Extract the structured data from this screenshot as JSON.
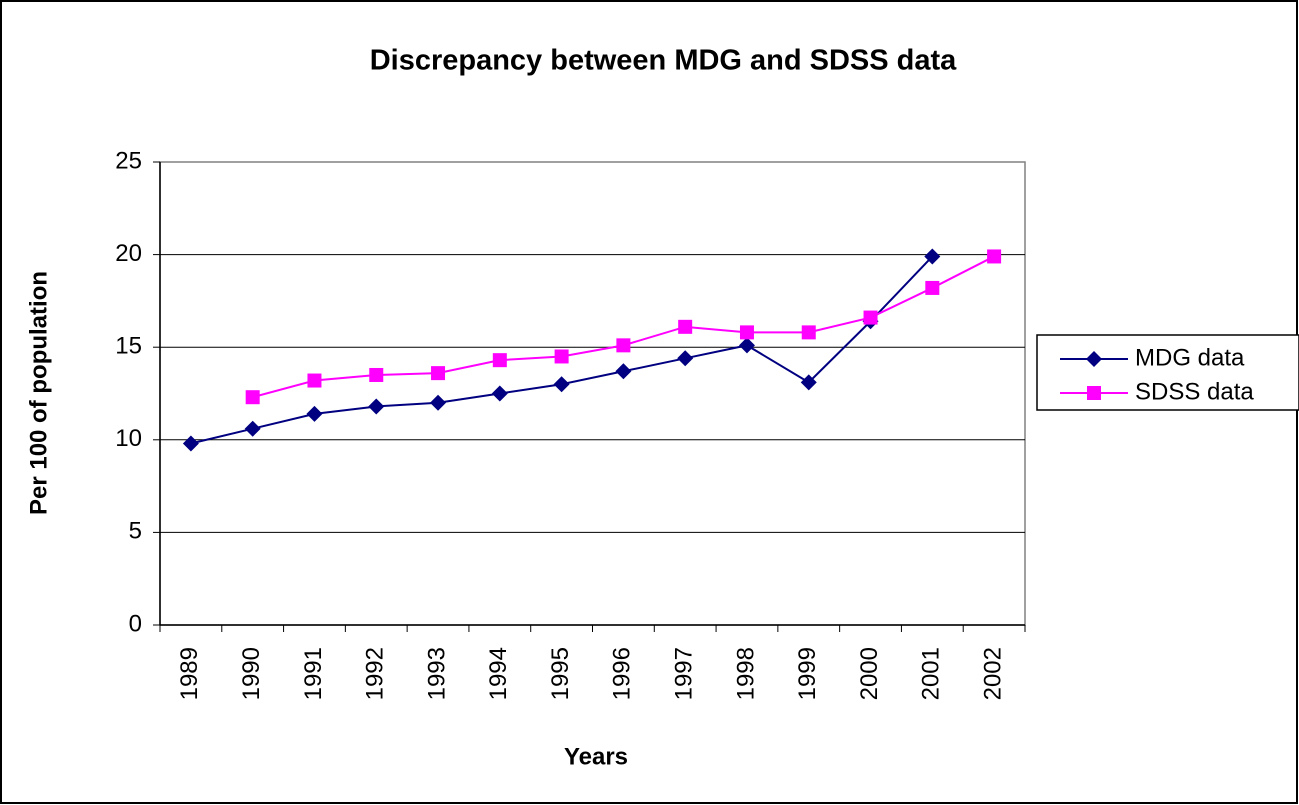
{
  "chart_data": {
    "type": "line",
    "title": "Discrepancy between MDG and SDSS data",
    "xlabel": "Years",
    "ylabel": "Per 100 of population",
    "categories": [
      "1989",
      "1990",
      "1991",
      "1992",
      "1993",
      "1994",
      "1995",
      "1996",
      "1997",
      "1998",
      "1999",
      "2000",
      "2001",
      "2002"
    ],
    "series": [
      {
        "name": "MDG data",
        "color": "#000080",
        "marker": "diamond",
        "values": [
          9.8,
          10.6,
          11.4,
          11.8,
          12.0,
          12.5,
          13.0,
          13.7,
          14.4,
          15.1,
          13.1,
          16.4,
          19.9,
          null
        ]
      },
      {
        "name": "SDSS data",
        "color": "#ff00ff",
        "marker": "square",
        "values": [
          null,
          12.3,
          13.2,
          13.5,
          13.6,
          14.3,
          14.5,
          15.1,
          16.1,
          15.8,
          15.8,
          16.6,
          18.2,
          19.9
        ]
      }
    ],
    "ylim": [
      0,
      25
    ],
    "yticks": [
      0,
      5,
      10,
      15,
      20,
      25
    ],
    "grid": true,
    "legend": "right"
  }
}
